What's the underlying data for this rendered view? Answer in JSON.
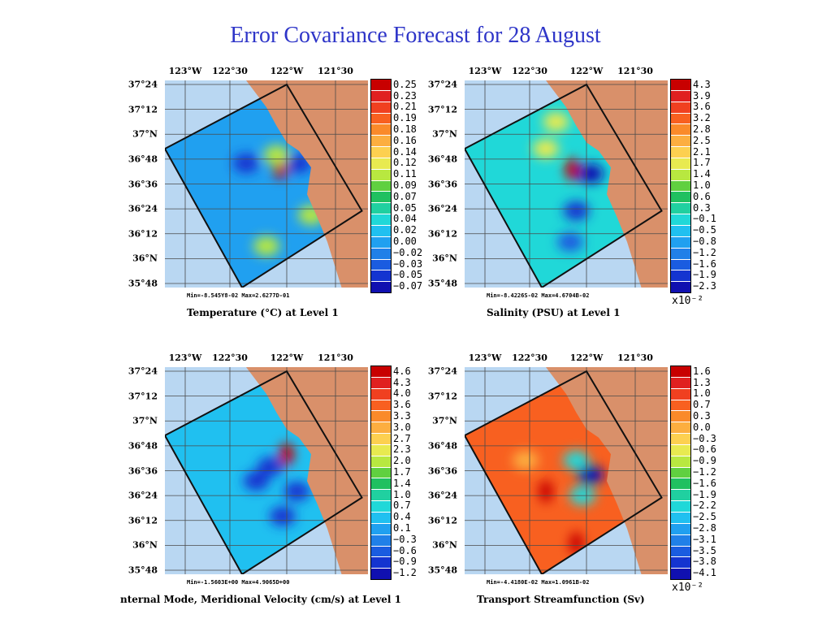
{
  "title": "Error Covariance Forecast for 28 August",
  "colors": {
    "title": "#2e35c8",
    "ocean_outside": "#b9d7f2",
    "land": "#d9906a",
    "grid": "#4a4a4a",
    "domain_box": "#111111"
  },
  "chart_data": [
    {
      "type": "heatmap",
      "title": "",
      "xlabel": "Temperature (°C) at Level 1",
      "x_ticks": [
        "123°W",
        "122°30",
        "122°W",
        "121°30"
      ],
      "y_ticks": [
        "37°24",
        "37°12",
        "37°N",
        "36°48",
        "36°36",
        "36°24",
        "36°12",
        "36°N",
        "35°48"
      ],
      "stats": "Min=-8.545Y8-02  Max=2.6277D-01",
      "colorbar": {
        "labels": [
          "0.25",
          "0.23",
          "0.21",
          "0.19",
          "0.18",
          "0.16",
          "0.14",
          "0.12",
          "0.11",
          "0.09",
          "0.07",
          "0.05",
          "0.04",
          "0.02",
          "0.00",
          "−0.02",
          "−0.03",
          "−0.05",
          "−0.07"
        ],
        "multiplier": ""
      },
      "background_level": 0.25,
      "features": [
        {
          "x": 0.57,
          "y": 0.42,
          "v": 1.0
        },
        {
          "x": 0.55,
          "y": 0.36,
          "v": 0.55
        },
        {
          "x": 0.72,
          "y": 0.65,
          "v": 0.55
        },
        {
          "x": 0.5,
          "y": 0.8,
          "v": 0.55
        },
        {
          "x": 0.4,
          "y": 0.4,
          "v": 0.08
        },
        {
          "x": 0.66,
          "y": 0.4,
          "v": 0.08
        }
      ]
    },
    {
      "type": "heatmap",
      "title": "",
      "xlabel": "Salinity (PSU) at Level 1",
      "x_ticks": [
        "123°W",
        "122°30",
        "122°W",
        "121°30"
      ],
      "y_ticks": [
        "37°24",
        "37°12",
        "37°N",
        "36°48",
        "36°36",
        "36°24",
        "36°12",
        "36°N",
        "35°48"
      ],
      "stats": "Min=-8.4226S-02  Max=4.6704B-02",
      "colorbar": {
        "labels": [
          "4.3",
          "3.9",
          "3.6",
          "3.2",
          "2.8",
          "2.5",
          "2.1",
          "1.7",
          "1.4",
          "1.0",
          "0.6",
          "0.3",
          "−0.1",
          "−0.5",
          "−0.8",
          "−1.2",
          "−1.6",
          "−1.9",
          "−2.3"
        ],
        "multiplier": "x10⁻²"
      },
      "background_level": 0.35,
      "features": [
        {
          "x": 0.53,
          "y": 0.43,
          "v": 1.0
        },
        {
          "x": 0.4,
          "y": 0.33,
          "v": 0.62
        },
        {
          "x": 0.45,
          "y": 0.2,
          "v": 0.58
        },
        {
          "x": 0.62,
          "y": 0.45,
          "v": 0.05
        },
        {
          "x": 0.55,
          "y": 0.63,
          "v": 0.08
        },
        {
          "x": 0.52,
          "y": 0.78,
          "v": 0.12
        }
      ]
    },
    {
      "type": "heatmap",
      "title": "",
      "xlabel": "nternal Mode, Meridional Velocity (cm/s) at Level 1",
      "x_ticks": [
        "123°W",
        "122°30",
        "122°W",
        "121°30"
      ],
      "y_ticks": [
        "37°24",
        "37°12",
        "37°N",
        "36°48",
        "36°36",
        "36°24",
        "36°12",
        "36°N",
        "35°48"
      ],
      "stats": "Min=-1.5603E+00  Max=4.9065D+00",
      "colorbar": {
        "labels": [
          "4.6",
          "4.3",
          "4.0",
          "3.6",
          "3.3",
          "3.0",
          "2.7",
          "2.3",
          "2.0",
          "1.7",
          "1.4",
          "1.0",
          "0.7",
          "0.4",
          "0.1",
          "−0.3",
          "−0.6",
          "−0.9",
          "−1.2"
        ],
        "multiplier": ""
      },
      "background_level": 0.27,
      "features": [
        {
          "x": 0.6,
          "y": 0.42,
          "v": 1.0
        },
        {
          "x": 0.52,
          "y": 0.48,
          "v": 0.06
        },
        {
          "x": 0.45,
          "y": 0.55,
          "v": 0.08
        },
        {
          "x": 0.65,
          "y": 0.6,
          "v": 0.06
        },
        {
          "x": 0.58,
          "y": 0.72,
          "v": 0.1
        }
      ]
    },
    {
      "type": "heatmap",
      "title": "",
      "xlabel": "Transport Streamfunction (Sv)",
      "x_ticks": [
        "123°W",
        "122°30",
        "122°W",
        "121°30"
      ],
      "y_ticks": [
        "37°24",
        "37°12",
        "37°N",
        "36°48",
        "36°36",
        "36°24",
        "36°12",
        "36°N",
        "35°48"
      ],
      "stats": "Min=-4.4180E-02  Max=1.0961B-02",
      "colorbar": {
        "labels": [
          "1.6",
          "1.3",
          "1.0",
          "0.7",
          "0.3",
          "0.0",
          "−0.3",
          "−0.6",
          "−0.9",
          "−1.2",
          "−1.6",
          "−1.9",
          "−2.2",
          "−2.5",
          "−2.8",
          "−3.1",
          "−3.5",
          "−3.8",
          "−4.1"
        ],
        "multiplier": "x10⁻²"
      },
      "background_level": 0.82,
      "features": [
        {
          "x": 0.62,
          "y": 0.52,
          "v": 0.05
        },
        {
          "x": 0.55,
          "y": 0.45,
          "v": 0.35
        },
        {
          "x": 0.58,
          "y": 0.62,
          "v": 0.35
        },
        {
          "x": 0.4,
          "y": 0.6,
          "v": 0.95
        },
        {
          "x": 0.55,
          "y": 0.85,
          "v": 0.95
        },
        {
          "x": 0.3,
          "y": 0.45,
          "v": 0.7
        }
      ]
    }
  ]
}
